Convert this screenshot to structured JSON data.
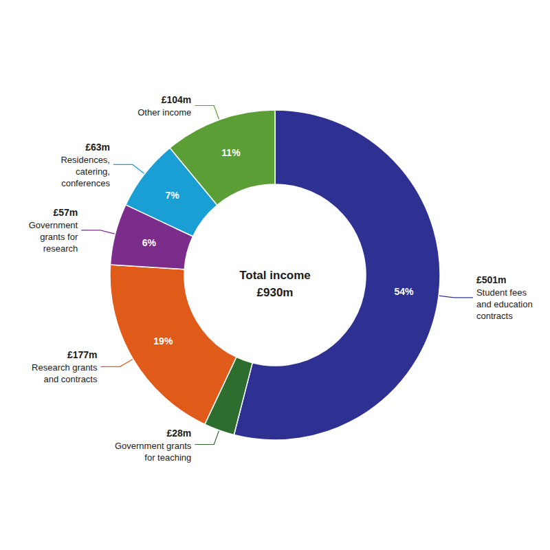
{
  "chart_data": {
    "type": "pie",
    "title": "Total income",
    "subtitle": "£930m",
    "categories": [
      "Student fees\nand education\ncontracts",
      "Government grants\nfor teaching",
      "Research grants\nand contracts",
      "Government\ngrants for\nresearch",
      "Residences,\ncatering,\nconferences",
      "Other income"
    ],
    "values": [
      54,
      3,
      19,
      6,
      7,
      11
    ],
    "value_labels": [
      "54%",
      null,
      "19%",
      "6%",
      "7%",
      "11%"
    ],
    "data_labels": true,
    "annotations": [
      "£501m",
      "£28m",
      "£177m",
      "£57m",
      "£63m",
      "£104m"
    ],
    "colors": [
      "#2e3192",
      "#2d6e2e",
      "#e05a1a",
      "#7b2d8b",
      "#1a9fd4",
      "#5a9e35"
    ],
    "legend": false
  }
}
